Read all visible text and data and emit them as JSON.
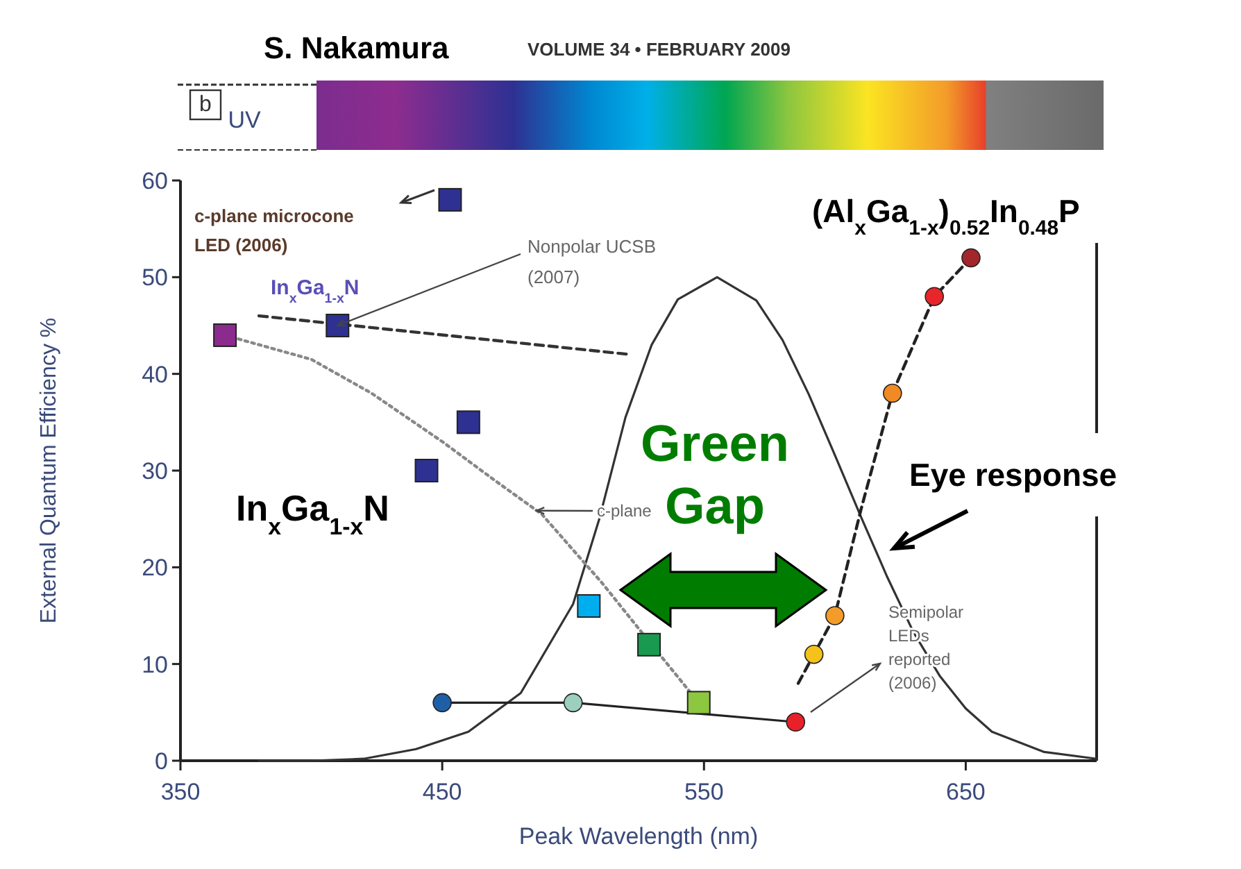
{
  "chart_data": {
    "type": "scatter",
    "title": "S. Nakamura",
    "subtitle": "VOLUME 34 • FEBRUARY 2009",
    "xlabel": "Peak Wavelength (nm)",
    "ylabel": "External Quantum Efficiency %",
    "xlim": [
      350,
      700
    ],
    "xticks": [
      350,
      450,
      550,
      650
    ],
    "ylim": [
      0,
      60
    ],
    "yticks": [
      0,
      10,
      20,
      30,
      40,
      50,
      60
    ],
    "grid": false,
    "annotations": [
      "b",
      "UV",
      "c-plane microcone LED (2006)",
      "In$_{x}$Ga$_{1-x}$N",
      {
        "text": "Nonpolar UCSB (2007)",
        "x": 410,
        "y": 45
      },
      {
        "text": "c-plane",
        "x": 485,
        "y": 26
      },
      "Semipolar LEDs reported (2006)",
      "In$_{x}$Ga$_{1-x}$N",
      "(Al$_{x}$Ga$_{1-x}$)$_{0.52}$In$_{0.48}$P",
      "Green Gap",
      "Eye response"
    ],
    "series": [
      {
        "type": "line",
        "color": "#333333",
        "line_style": "solid",
        "x": [
          380,
          400,
          420,
          440,
          460,
          480,
          500,
          510,
          520,
          530,
          540,
          555,
          570,
          580,
          590,
          600,
          610,
          620,
          630,
          640,
          650,
          660,
          680,
          700
        ],
        "values": [
          0,
          0,
          0.2,
          1.2,
          3,
          7,
          16.2,
          25,
          35.5,
          43,
          47.7,
          50,
          47.6,
          43.5,
          37.9,
          31.6,
          25.2,
          19,
          13.3,
          8.8,
          5.4,
          3,
          0.9,
          0.2
        ]
      },
      {
        "type": "line",
        "color": "#888888",
        "line_style": "dotted",
        "x": [
          367,
          400,
          423,
          450,
          470,
          488,
          511,
          530,
          548
        ],
        "values": [
          44,
          41.5,
          38,
          33,
          29,
          25.5,
          18.4,
          12,
          6
        ]
      },
      {
        "type": "line",
        "color": "#333333",
        "line_style": "dashed",
        "x": [
          380,
          522
        ],
        "values": [
          46,
          42
        ]
      },
      {
        "type": "line",
        "color": "#222222",
        "line_style": "dashed",
        "x": [
          586,
          592,
          600,
          610,
          622,
          638,
          652
        ],
        "values": [
          8,
          11,
          15,
          26,
          38,
          48,
          52
        ]
      },
      {
        "type": "line",
        "color": "#222222",
        "line_style": "solid",
        "marker": "circle",
        "x": [
          450,
          500,
          585
        ],
        "values": [
          6,
          6,
          4
        ],
        "colors": [
          "#1f5fa8",
          "#9ccfc0",
          "#e8202a"
        ]
      },
      {
        "marker": "square",
        "x": [
          367,
          410,
          453,
          460,
          444,
          506,
          529,
          548
        ],
        "values": [
          44,
          45,
          58,
          35,
          30,
          16,
          12,
          6
        ],
        "colors": [
          "#8b2b8e",
          "#2e3192",
          "#2e3192",
          "#2e3192",
          "#2e3192",
          "#00aeef",
          "#1a9a50",
          "#8dc63f"
        ]
      },
      {
        "type": "scatter",
        "marker": "circle",
        "x": [
          592,
          600,
          622,
          638,
          652
        ],
        "values": [
          11,
          15,
          38,
          48,
          52
        ],
        "colors": [
          "#f5c21b",
          "#f39c2a",
          "#f08a24",
          "#e8262a",
          "#a3262a"
        ]
      }
    ]
  }
}
